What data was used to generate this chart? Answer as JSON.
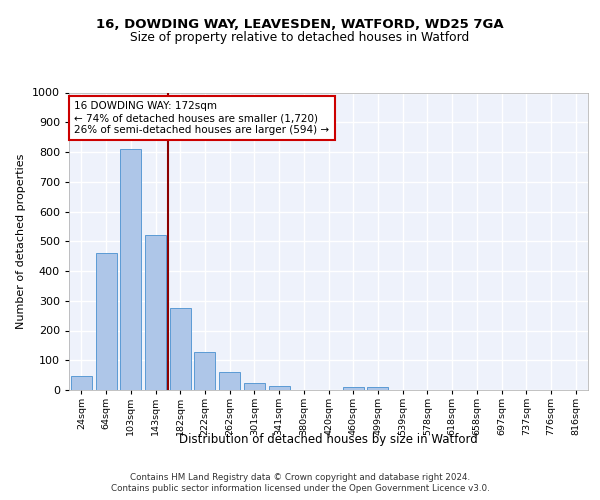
{
  "title_line1": "16, DOWDING WAY, LEAVESDEN, WATFORD, WD25 7GA",
  "title_line2": "Size of property relative to detached houses in Watford",
  "xlabel": "Distribution of detached houses by size in Watford",
  "ylabel": "Number of detached properties",
  "categories": [
    "24sqm",
    "64sqm",
    "103sqm",
    "143sqm",
    "182sqm",
    "222sqm",
    "262sqm",
    "301sqm",
    "341sqm",
    "380sqm",
    "420sqm",
    "460sqm",
    "499sqm",
    "539sqm",
    "578sqm",
    "618sqm",
    "658sqm",
    "697sqm",
    "737sqm",
    "776sqm",
    "816sqm"
  ],
  "values": [
    46,
    459,
    810,
    521,
    275,
    127,
    60,
    22,
    12,
    0,
    0,
    10,
    10,
    0,
    0,
    0,
    0,
    0,
    0,
    0,
    0
  ],
  "bar_color": "#aec6e8",
  "bar_edge_color": "#5b9bd5",
  "vline_x": 3.5,
  "annotation_text_line1": "16 DOWDING WAY: 172sqm",
  "annotation_text_line2": "← 74% of detached houses are smaller (1,720)",
  "annotation_text_line3": "26% of semi-detached houses are larger (594) →",
  "vline_color": "#8b0000",
  "annotation_box_facecolor": "#ffffff",
  "annotation_box_edgecolor": "#cc0000",
  "ylim": [
    0,
    1000
  ],
  "yticks": [
    0,
    100,
    200,
    300,
    400,
    500,
    600,
    700,
    800,
    900,
    1000
  ],
  "background_color": "#eef2fb",
  "grid_color": "#ffffff",
  "fig_facecolor": "#ffffff",
  "footer_line1": "Contains HM Land Registry data © Crown copyright and database right 2024.",
  "footer_line2": "Contains public sector information licensed under the Open Government Licence v3.0."
}
